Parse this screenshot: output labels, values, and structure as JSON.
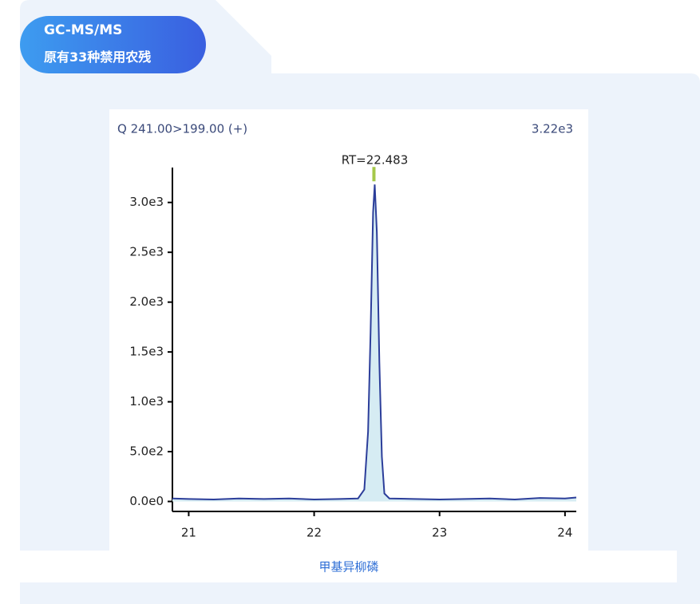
{
  "badge": {
    "line1": "GC-MS/MS",
    "line2": "原有33种禁用农残"
  },
  "caption": "甲基异柳磷",
  "chart_data": {
    "type": "line",
    "title": "Q 241.00>199.00 (+)",
    "subtitle": "3.22e3",
    "annotation": "RT=22.483",
    "x": [
      20.87,
      21.0,
      21.2,
      21.4,
      21.6,
      21.8,
      22.0,
      22.2,
      22.35,
      22.4,
      22.43,
      22.45,
      22.47,
      22.483,
      22.5,
      22.52,
      22.54,
      22.56,
      22.6,
      22.8,
      23.0,
      23.2,
      23.4,
      23.6,
      23.8,
      24.0,
      24.09
    ],
    "series": [
      {
        "color": "#2c3e9a",
        "fill": "#d6ecf3",
        "values": [
          30,
          25,
          20,
          30,
          25,
          30,
          20,
          25,
          30,
          120,
          700,
          1700,
          2900,
          3180,
          2700,
          1400,
          450,
          80,
          30,
          25,
          20,
          25,
          30,
          20,
          35,
          30,
          40
        ]
      }
    ],
    "xlim": [
      20.87,
      24.09
    ],
    "xticks": [
      21,
      22,
      23,
      24
    ],
    "ylim": [
      -100,
      3350
    ],
    "yticks": [
      {
        "value": 0,
        "label": "0.0e0"
      },
      {
        "value": 500,
        "label": "5.0e2"
      },
      {
        "value": 1000,
        "label": "1.0e3"
      },
      {
        "value": 1500,
        "label": "1.5e3"
      },
      {
        "value": 2000,
        "label": "2.0e3"
      },
      {
        "value": 2500,
        "label": "2.5e3"
      },
      {
        "value": 3000,
        "label": "3.0e3"
      }
    ],
    "grid": false
  }
}
